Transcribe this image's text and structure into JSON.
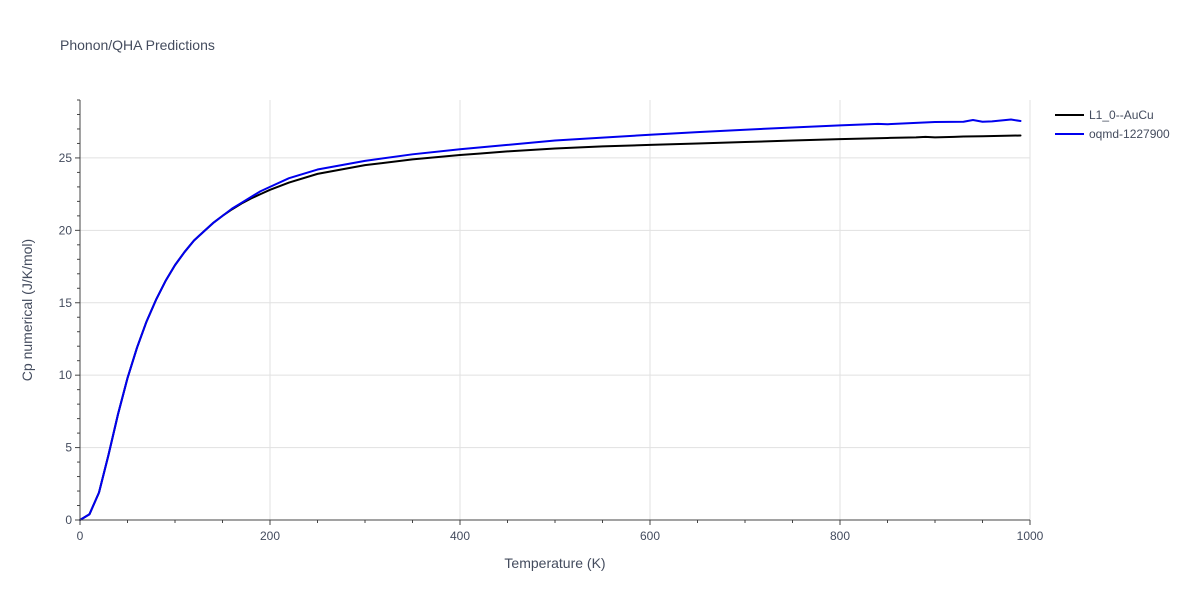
{
  "chart_data": {
    "type": "line",
    "title": "Phonon/QHA Predictions",
    "xlabel": "Temperature (K)",
    "ylabel": "Cp numerical (J/K/mol)",
    "xlim": [
      0,
      1000
    ],
    "ylim": [
      0,
      29
    ],
    "xticks": [
      0,
      200,
      400,
      600,
      800,
      1000
    ],
    "yticks": [
      0,
      5,
      10,
      15,
      20,
      25
    ],
    "grid": true,
    "legend_position": "top-right",
    "series": [
      {
        "name": "L1_0--AuCu",
        "color": "#000000",
        "x": [
          0,
          10,
          20,
          30,
          40,
          50,
          60,
          70,
          80,
          90,
          100,
          110,
          120,
          130,
          140,
          150,
          160,
          170,
          180,
          190,
          200,
          220,
          250,
          300,
          350,
          400,
          420,
          450,
          500,
          550,
          600,
          650,
          700,
          750,
          800,
          850,
          880,
          890,
          900,
          920,
          930,
          950,
          990
        ],
        "y": [
          0,
          0.4,
          1.9,
          4.5,
          7.3,
          9.8,
          11.9,
          13.7,
          15.2,
          16.5,
          17.6,
          18.5,
          19.3,
          19.9,
          20.5,
          21.0,
          21.45,
          21.85,
          22.2,
          22.5,
          22.8,
          23.3,
          23.9,
          24.5,
          24.9,
          25.2,
          25.3,
          25.45,
          25.65,
          25.8,
          25.9,
          26.0,
          26.1,
          26.2,
          26.3,
          26.38,
          26.42,
          26.45,
          26.42,
          26.45,
          26.48,
          26.5,
          26.55
        ]
      },
      {
        "name": "oqmd-1227900",
        "color": "#0000ee",
        "x": [
          0,
          10,
          20,
          30,
          40,
          50,
          60,
          70,
          80,
          90,
          100,
          110,
          120,
          130,
          140,
          150,
          160,
          170,
          180,
          190,
          200,
          220,
          250,
          300,
          350,
          400,
          420,
          450,
          500,
          550,
          600,
          650,
          700,
          750,
          800,
          840,
          850,
          880,
          900,
          930,
          940,
          950,
          960,
          980,
          990
        ],
        "y": [
          0,
          0.4,
          1.9,
          4.5,
          7.3,
          9.8,
          11.9,
          13.7,
          15.2,
          16.5,
          17.6,
          18.5,
          19.3,
          19.9,
          20.5,
          21.0,
          21.5,
          21.9,
          22.3,
          22.7,
          23.0,
          23.6,
          24.2,
          24.8,
          25.25,
          25.6,
          25.72,
          25.9,
          26.2,
          26.4,
          26.6,
          26.78,
          26.95,
          27.1,
          27.25,
          27.35,
          27.33,
          27.42,
          27.48,
          27.5,
          27.62,
          27.5,
          27.52,
          27.65,
          27.55
        ]
      }
    ]
  }
}
